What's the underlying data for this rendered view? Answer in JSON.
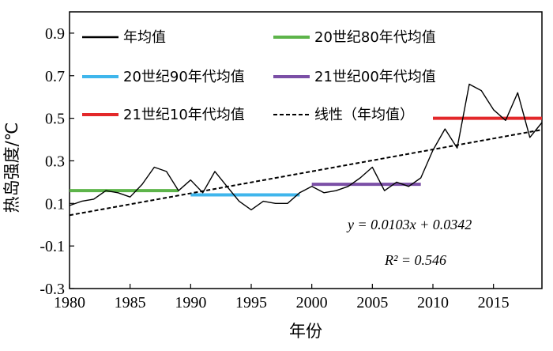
{
  "chart_data": {
    "type": "line",
    "xlabel": "年份",
    "ylabel": "热岛强度/℃",
    "xlim": [
      1980,
      2019
    ],
    "ylim": [
      -0.3,
      1.0
    ],
    "xticks": [
      1980,
      1985,
      1990,
      1995,
      2000,
      2005,
      2010,
      2015
    ],
    "yticks": [
      -0.3,
      -0.1,
      0.1,
      0.3,
      0.5,
      0.7,
      0.9
    ],
    "xtick_labels": [
      "1980",
      "1985",
      "1990",
      "1995",
      "2000",
      "2005",
      "2010",
      "2015"
    ],
    "ytick_labels": [
      "-0.3",
      "-0.1",
      "0.1",
      "0.3",
      "0.5",
      "0.7",
      "0.9"
    ],
    "grid": false,
    "legend_position": "top",
    "series": [
      {
        "name": "年均值",
        "type": "line",
        "color": "#000000",
        "x": [
          1980,
          1981,
          1982,
          1983,
          1984,
          1985,
          1986,
          1987,
          1988,
          1989,
          1990,
          1991,
          1992,
          1993,
          1994,
          1995,
          1996,
          1997,
          1998,
          1999,
          2000,
          2001,
          2002,
          2003,
          2004,
          2005,
          2006,
          2007,
          2008,
          2009,
          2010,
          2011,
          2012,
          2013,
          2014,
          2015,
          2016,
          2017,
          2018,
          2019
        ],
        "values": [
          0.09,
          0.11,
          0.12,
          0.16,
          0.15,
          0.13,
          0.19,
          0.27,
          0.25,
          0.16,
          0.21,
          0.15,
          0.25,
          0.18,
          0.11,
          0.07,
          0.11,
          0.1,
          0.1,
          0.15,
          0.18,
          0.15,
          0.16,
          0.18,
          0.22,
          0.27,
          0.16,
          0.2,
          0.18,
          0.22,
          0.35,
          0.45,
          0.36,
          0.66,
          0.63,
          0.54,
          0.49,
          0.62,
          0.41,
          0.48
        ]
      },
      {
        "name": "20世纪80年代均值",
        "type": "segment",
        "color": "#5db44a",
        "x": [
          1980,
          1989
        ],
        "value": 0.16
      },
      {
        "name": "20世纪90年代均值",
        "type": "segment",
        "color": "#3fb6ec",
        "x": [
          1990,
          1999
        ],
        "value": 0.14
      },
      {
        "name": "21世纪00年代均值",
        "type": "segment",
        "color": "#7b4fa6",
        "x": [
          2000,
          2009
        ],
        "value": 0.19
      },
      {
        "name": "21世纪10年代均值",
        "type": "segment",
        "color": "#e3282a",
        "x": [
          2010,
          2019
        ],
        "value": 0.5
      },
      {
        "name": "线性（年均值）",
        "type": "trend",
        "color": "#000000",
        "dashed": true,
        "slope": 0.0103,
        "intercept": 0.0342,
        "x0": 1979
      }
    ],
    "annotations": {
      "equation": "y = 0.0103x + 0.0342",
      "r2": "R² = 0.546"
    }
  }
}
